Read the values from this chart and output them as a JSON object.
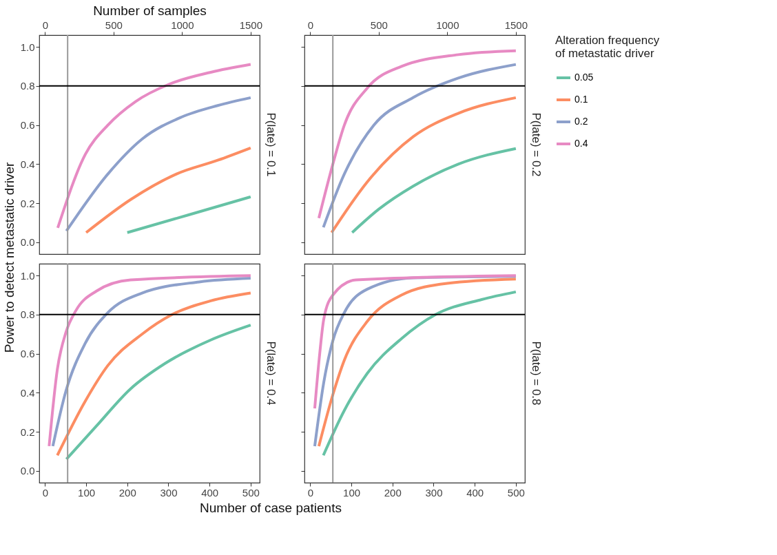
{
  "chart_data": [
    {
      "type": "line",
      "title": "P(late) = 0.1",
      "ylabel": "Power to detect metastatic driver",
      "x2label": "Number of samples",
      "legend_title": "Alteration frequency of metastatic driver",
      "legend": "right",
      "grid": false,
      "xlim": [
        -14,
        522
      ],
      "ylim": [
        -0.06,
        1.06
      ],
      "x2lim": [
        -42,
        1566
      ],
      "x2ticks": [
        0,
        500,
        1000,
        1500
      ],
      "yticks": [
        {
          "value": 0,
          "label": "0.0"
        },
        {
          "value": 0.2,
          "label": "0.2"
        },
        {
          "value": 0.4,
          "label": "0.4"
        },
        {
          "value": 0.6,
          "label": "0.6"
        },
        {
          "value": 0.8,
          "label": "0.8"
        },
        {
          "value": 1,
          "label": "1.0"
        }
      ],
      "ref_lines": [
        {
          "axis": "x",
          "value": 55,
          "color": "#999999"
        },
        {
          "axis": "y",
          "value": 0.8,
          "color": "#000000"
        }
      ],
      "series": [
        {
          "name": "0.05",
          "color": "#66c2a5",
          "x": [
            200,
            348,
            500
          ],
          "values": [
            0.05,
            0.14,
            0.233
          ]
        },
        {
          "name": "0.1",
          "color": "#fc8d62",
          "x": [
            100,
            209,
            320,
            420,
            500
          ],
          "values": [
            0.05,
            0.22,
            0.35,
            0.42,
            0.483
          ]
        },
        {
          "name": "0.2",
          "color": "#8da0cb",
          "x": [
            52,
            153,
            237,
            331,
            420,
            500
          ],
          "values": [
            0.058,
            0.35,
            0.53,
            0.64,
            0.7,
            0.74
          ]
        },
        {
          "name": "0.4",
          "color": "#e78ac3",
          "x": [
            31,
            98,
            153,
            220,
            303,
            403,
            500
          ],
          "values": [
            0.074,
            0.45,
            0.6,
            0.72,
            0.81,
            0.87,
            0.91
          ]
        }
      ]
    },
    {
      "type": "line",
      "title": "P(late) = 0.2",
      "tick_labels": "x",
      "grid": false,
      "xlim": [
        -14,
        522
      ],
      "ylim": [
        -0.06,
        1.06
      ],
      "x2lim": [
        -42,
        1566
      ],
      "x2ticks": [
        0,
        500,
        1000,
        1500
      ],
      "yticks": [
        {
          "value": 0,
          "label": null
        },
        {
          "value": 0.2,
          "label": null
        },
        {
          "value": 0.4,
          "label": null
        },
        {
          "value": 0.6,
          "label": null
        },
        {
          "value": 0.8,
          "label": null
        },
        {
          "value": 1,
          "label": null
        }
      ],
      "ref_lines": [
        {
          "axis": "x",
          "value": 55,
          "color": "#999999"
        },
        {
          "axis": "y",
          "value": 0.8,
          "color": "#000000"
        }
      ],
      "series": [
        {
          "color": "#66c2a5",
          "x": [
            102,
            167,
            250,
            360,
            500
          ],
          "values": [
            0.05,
            0.17,
            0.287,
            0.4,
            0.48
          ]
        },
        {
          "color": "#fc8d62",
          "x": [
            52,
            139,
            250,
            360,
            500
          ],
          "values": [
            0.05,
            0.31,
            0.54,
            0.66,
            0.74
          ]
        },
        {
          "color": "#8da0cb",
          "x": [
            32,
            83,
            155,
            250,
            360,
            500
          ],
          "values": [
            0.077,
            0.35,
            0.6,
            0.74,
            0.84,
            0.91
          ]
        },
        {
          "color": "#e78ac3",
          "x": [
            21,
            55,
            83,
            139,
            222,
            360,
            500
          ],
          "values": [
            0.124,
            0.4,
            0.6,
            0.79,
            0.9,
            0.96,
            0.98
          ]
        }
      ]
    },
    {
      "type": "line",
      "title": "P(late) = 0.4",
      "xlabel": "Number of case patients",
      "grid": false,
      "xlim": [
        -14,
        522
      ],
      "ylim": [
        -0.06,
        1.06
      ],
      "xticks": [
        0,
        100,
        200,
        300,
        400,
        500
      ],
      "yticks": [
        {
          "value": 0,
          "label": "0.0"
        },
        {
          "value": 0.2,
          "label": "0.2"
        },
        {
          "value": 0.4,
          "label": "0.4"
        },
        {
          "value": 0.6,
          "label": "0.6"
        },
        {
          "value": 0.8,
          "label": "0.8"
        },
        {
          "value": 1,
          "label": "1.0"
        }
      ],
      "ref_lines": [
        {
          "axis": "x",
          "value": 55,
          "color": "#999999"
        },
        {
          "axis": "y",
          "value": 0.8,
          "color": "#000000"
        }
      ],
      "series": [
        {
          "color": "#66c2a5",
          "x": [
            52,
            125,
            208,
            292,
            403,
            500
          ],
          "values": [
            0.06,
            0.23,
            0.42,
            0.55,
            0.67,
            0.746
          ]
        },
        {
          "color": "#fc8d62",
          "x": [
            30,
            97,
            153,
            236,
            309,
            403,
            500
          ],
          "values": [
            0.08,
            0.354,
            0.54,
            0.7,
            0.8,
            0.87,
            0.91
          ]
        },
        {
          "color": "#8da0cb",
          "x": [
            19,
            51,
            97,
            153,
            236,
            375,
            500
          ],
          "values": [
            0.127,
            0.41,
            0.65,
            0.81,
            0.91,
            0.967,
            0.986
          ]
        },
        {
          "color": "#e78ac3",
          "x": [
            10,
            30,
            51,
            75,
            125,
            208,
            500
          ],
          "values": [
            0.127,
            0.52,
            0.71,
            0.82,
            0.92,
            0.977,
            0.999
          ]
        }
      ]
    },
    {
      "type": "line",
      "title": "P(late) = 0.8",
      "tick_labels": "x",
      "grid": false,
      "xlim": [
        -14,
        522
      ],
      "ylim": [
        -0.06,
        1.06
      ],
      "xticks": [
        0,
        100,
        200,
        300,
        400,
        500
      ],
      "yticks": [
        {
          "value": 0,
          "label": null
        },
        {
          "value": 0.2,
          "label": null
        },
        {
          "value": 0.4,
          "label": null
        },
        {
          "value": 0.6,
          "label": null
        },
        {
          "value": 0.8,
          "label": null
        },
        {
          "value": 1,
          "label": null
        }
      ],
      "ref_lines": [
        {
          "axis": "x",
          "value": 55,
          "color": "#999999"
        },
        {
          "axis": "y",
          "value": 0.8,
          "color": "#000000"
        }
      ],
      "series": [
        {
          "color": "#66c2a5",
          "x": [
            32,
            83,
            139,
            222,
            305,
            417,
            500
          ],
          "values": [
            0.08,
            0.31,
            0.5,
            0.677,
            0.8,
            0.877,
            0.916
          ]
        },
        {
          "color": "#fc8d62",
          "x": [
            21,
            55,
            83,
            139,
            222,
            333,
            500
          ],
          "values": [
            0.127,
            0.39,
            0.567,
            0.766,
            0.9,
            0.96,
            0.982
          ]
        },
        {
          "color": "#8da0cb",
          "x": [
            11,
            33,
            55,
            83,
            139,
            250,
            500
          ],
          "values": [
            0.127,
            0.454,
            0.666,
            0.81,
            0.93,
            0.988,
            0.996
          ]
        },
        {
          "color": "#e78ac3",
          "x": [
            11,
            22,
            33,
            55,
            111,
            500
          ],
          "values": [
            0.32,
            0.577,
            0.777,
            0.9,
            0.977,
            0.999
          ]
        }
      ]
    }
  ]
}
